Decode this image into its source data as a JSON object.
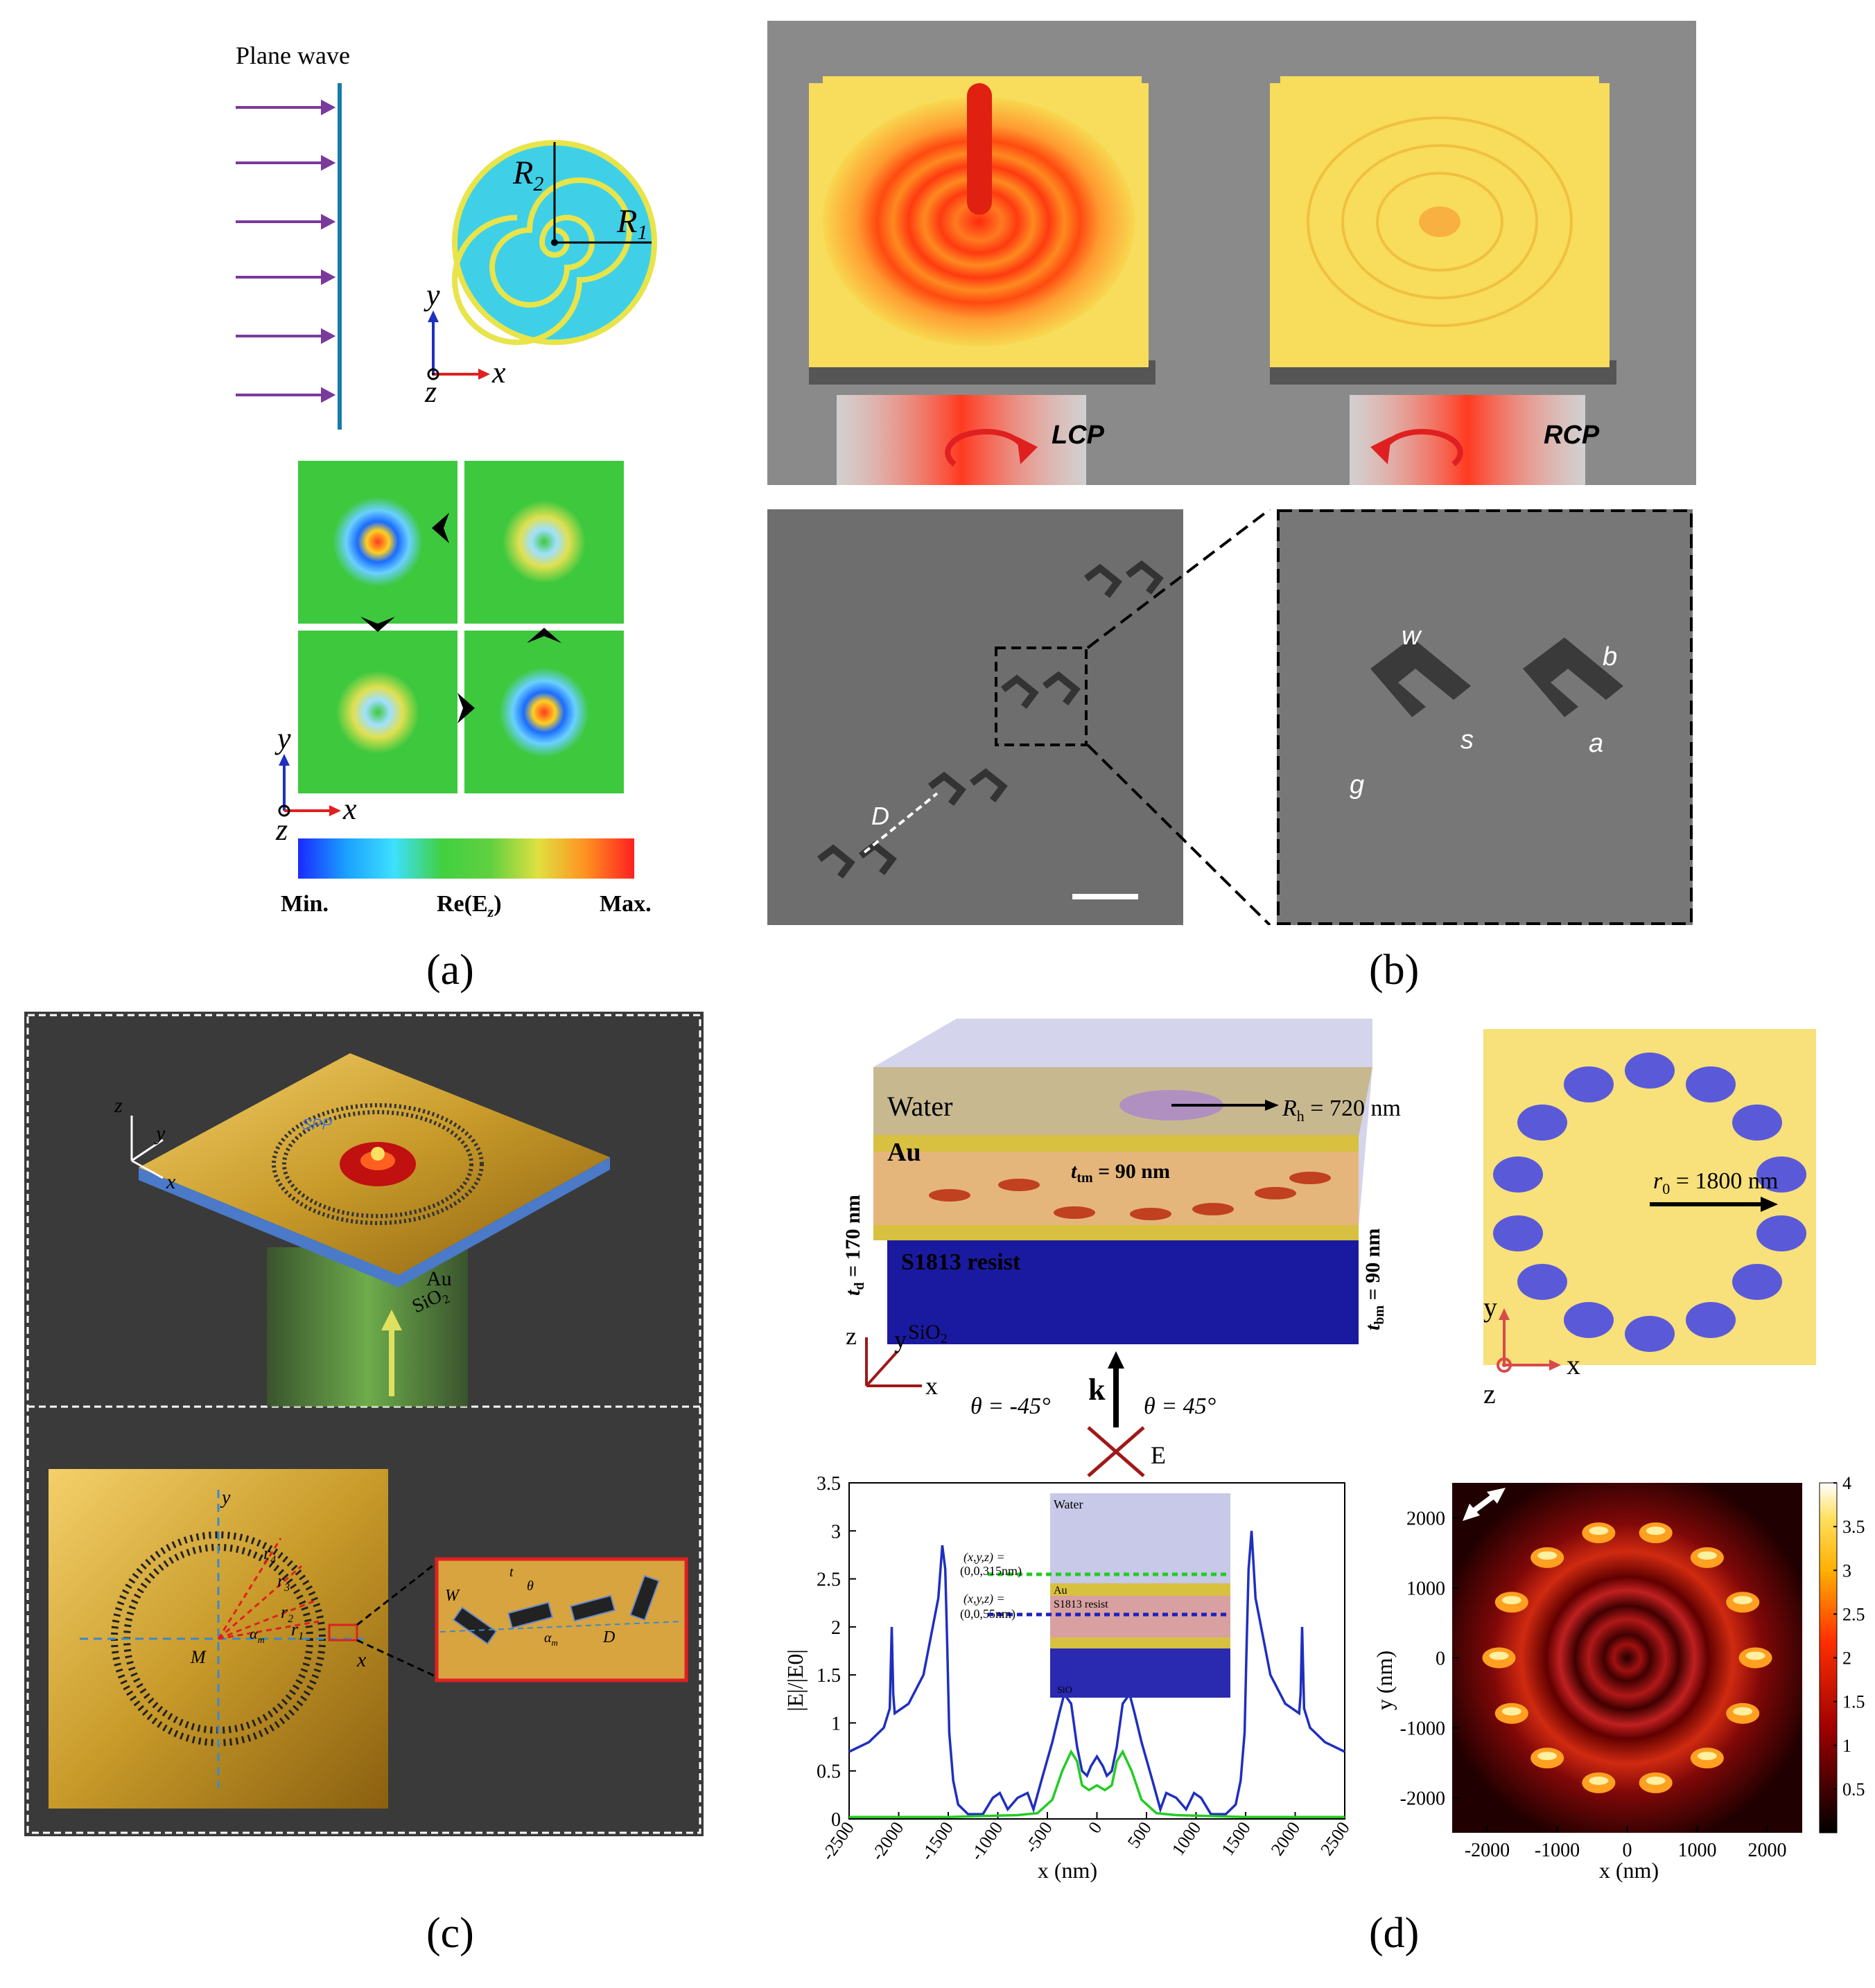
{
  "panel_a": {
    "label": "(a)",
    "plane_wave": "Plane wave",
    "r1": "R",
    "r1_sub": "1",
    "r2": "R",
    "r2_sub": "2",
    "axis_y": "y",
    "axis_x": "x",
    "axis_z": "z",
    "cb_min": "Min.",
    "cb_mid": "Re(E",
    "cb_mid_sub": "z",
    "cb_mid_end": ")",
    "cb_max": "Max."
  },
  "panel_b": {
    "label": "(b)",
    "lcp": "LCP",
    "rcp": "RCP",
    "d": "D",
    "w": "w",
    "b": "b",
    "s": "s",
    "a": "a",
    "g": "g"
  },
  "panel_c": {
    "label": "(c)",
    "z": "z",
    "y": "y",
    "x": "x",
    "spp": "SPP",
    "au": "Au",
    "sio2": "SiO",
    "sio2_sub": "2",
    "y2": "y",
    "x2": "x",
    "m": "M",
    "r4": "r",
    "r4_sub": "4",
    "r3": "r",
    "r3_sub": "3",
    "r2": "r",
    "r2_sub": "2",
    "r1": "r",
    "r1_sub": "1",
    "alpha": "α",
    "alpha_sub": "m",
    "W": "W",
    "D": "D",
    "inset_alpha": "α",
    "inset_alpha_sub": "m",
    "inset_theta": "θ",
    "inset_tm": "t"
  },
  "panel_d": {
    "label": "(d)",
    "water": "Water",
    "rh": "R",
    "rh_sub": "h",
    "rh_val": " = 720 nm",
    "au": "Au",
    "ttm": "t",
    "ttm_sub": "tm",
    "ttm_val": " = 90 nm",
    "td": "t",
    "td_sub": "d",
    "td_val": " = 170 nm",
    "resist": "S1813 resist",
    "tbm": "t",
    "tbm_sub": "bm",
    "tbm_val": " = 90 nm",
    "sio2": "SiO",
    "sio2_sub": "2",
    "z": "z",
    "y": "y",
    "x": "x",
    "k": "k",
    "theta_neg": "θ = -45°",
    "theta_pos": "θ = 45°",
    "e": "E",
    "r0": "r",
    "r0_sub": "0",
    "r0_val": " = 1800 nm",
    "ring_y": "y",
    "ring_x": "x",
    "ring_z": "z",
    "inset_water": "Water",
    "inset_au": "Au",
    "inset_resist": "S1813 resist",
    "inset_sio2": "SiO",
    "inset_pt1a": "(x,y,z) =",
    "inset_pt1b": "(0,0,315nm)",
    "inset_pt2a": "(x,y,z) =",
    "inset_pt2b": "(0,0,55nm)"
  },
  "chart_data": [
    {
      "type": "line",
      "xlabel": "x (nm)",
      "ylabel": "|E|/|E0|",
      "xlim": [
        -2500,
        2500
      ],
      "ylim": [
        0,
        3.5
      ],
      "xticks": [
        -2500,
        -2000,
        -1500,
        -1000,
        -500,
        0,
        500,
        1000,
        1500,
        2000,
        2500
      ],
      "xtick_labels": [
        "-2500",
        "-2000",
        "-1500",
        "-1000",
        "-500",
        "0",
        "500",
        "1000",
        "1500",
        "2000",
        "2500"
      ],
      "yticks": [
        0,
        0.5,
        1,
        1.5,
        2,
        2.5,
        3,
        3.5
      ],
      "ytick_labels": [
        "0",
        "0.5",
        "1",
        "1.5",
        "2",
        "2.5",
        "3",
        "3.5"
      ],
      "series": [
        {
          "color": "#1f2fbf",
          "x": [
            -2500,
            -2300,
            -2150,
            -2090,
            -2070,
            -2055,
            -2040,
            -1900,
            -1750,
            -1600,
            -1560,
            -1530,
            -1510,
            -1490,
            -1450,
            -1400,
            -1300,
            -1150,
            -1050,
            -980,
            -900,
            -800,
            -700,
            -640,
            -560,
            -450,
            -380,
            -330,
            -260,
            -200,
            -150,
            -100,
            -60,
            0,
            60,
            100,
            150,
            200,
            260,
            330,
            380,
            450,
            560,
            640,
            700,
            800,
            900,
            980,
            1050,
            1150,
            1300,
            1400,
            1450,
            1490,
            1510,
            1530,
            1560,
            1600,
            1750,
            1900,
            2040,
            2055,
            2070,
            2090,
            2150,
            2300,
            2500
          ],
          "y": [
            0.7,
            0.8,
            0.95,
            1.15,
            2.0,
            1.3,
            1.1,
            1.2,
            1.5,
            2.3,
            2.85,
            2.6,
            1.8,
            0.9,
            0.4,
            0.15,
            0.05,
            0.05,
            0.22,
            0.27,
            0.1,
            0.22,
            0.27,
            0.1,
            0.4,
            0.8,
            1.1,
            1.3,
            1.2,
            0.75,
            0.5,
            0.45,
            0.55,
            0.65,
            0.55,
            0.45,
            0.5,
            0.75,
            1.2,
            1.3,
            1.1,
            0.8,
            0.4,
            0.1,
            0.27,
            0.22,
            0.1,
            0.27,
            0.22,
            0.05,
            0.05,
            0.15,
            0.4,
            0.9,
            1.8,
            2.6,
            3.0,
            2.3,
            1.5,
            1.2,
            1.1,
            1.3,
            2.0,
            1.15,
            0.95,
            0.8,
            0.7
          ]
        },
        {
          "color": "#22cc22",
          "x": [
            -2500,
            -1500,
            -800,
            -600,
            -450,
            -350,
            -260,
            -200,
            -150,
            -80,
            0,
            80,
            150,
            200,
            260,
            350,
            450,
            600,
            800,
            1500,
            2500
          ],
          "y": [
            0.02,
            0.02,
            0.04,
            0.06,
            0.2,
            0.5,
            0.7,
            0.6,
            0.35,
            0.3,
            0.35,
            0.3,
            0.35,
            0.6,
            0.7,
            0.5,
            0.2,
            0.06,
            0.04,
            0.02,
            0.02
          ]
        }
      ]
    },
    {
      "type": "heatmap",
      "xlabel": "x (nm)",
      "ylabel": "y (nm)",
      "xlim": [
        -2500,
        2500
      ],
      "ylim": [
        -2500,
        2500
      ],
      "xticks": [
        -2000,
        -1000,
        0,
        1000,
        2000
      ],
      "xtick_labels": [
        "-2000",
        "-1000",
        "0",
        "1000",
        "2000"
      ],
      "yticks": [
        2000,
        1000,
        0,
        -1000,
        -2000
      ],
      "ytick_labels": [
        "2000",
        "1000",
        "0",
        "-1000",
        "-2000"
      ],
      "colorbar_ticks": [
        4,
        3.5,
        3,
        2.5,
        2,
        1.5,
        1,
        0.5
      ],
      "colorbar_labels": [
        "4",
        "3.5",
        "3",
        "2.5",
        "2",
        "1.5",
        "1",
        "0.5"
      ]
    }
  ]
}
